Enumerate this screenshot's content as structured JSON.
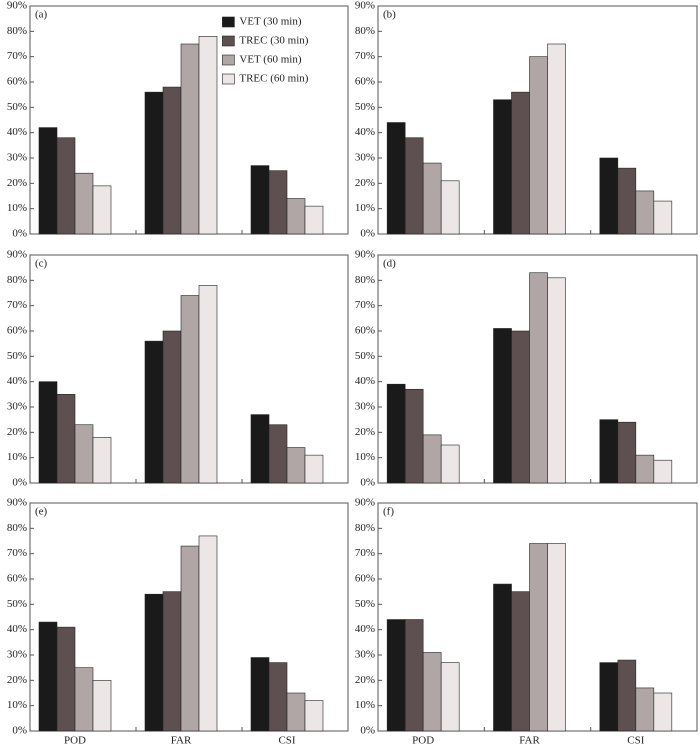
{
  "chart_data": [
    {
      "type": "bar",
      "title": "(a)",
      "categories": [
        null,
        null,
        null
      ],
      "legend": "upper right",
      "series": [
        {
          "name": "VET (30 min)",
          "color": "#1a1a1a",
          "values": [
            42,
            56,
            27
          ]
        },
        {
          "name": "TREC (30 min)",
          "color": "#5e5050",
          "values": [
            38,
            58,
            25
          ]
        },
        {
          "name": "VET (60 min)",
          "color": "#b0a6a6",
          "values": [
            24,
            75,
            14
          ]
        },
        {
          "name": "TREC (60 min)",
          "color": "#ece6e6",
          "values": [
            19,
            78,
            11
          ]
        }
      ],
      "ylim": [
        0,
        90
      ],
      "yticks": [
        {
          "value": 0,
          "label": "0%"
        },
        {
          "value": 10,
          "label": "10%"
        },
        {
          "value": 20,
          "label": "20%"
        },
        {
          "value": 30,
          "label": "30%"
        },
        {
          "value": 40,
          "label": "40%"
        },
        {
          "value": 50,
          "label": "50%"
        },
        {
          "value": 60,
          "label": "60%"
        },
        {
          "value": 70,
          "label": "70%"
        },
        {
          "value": 80,
          "label": "80%"
        },
        {
          "value": 90,
          "label": "90%"
        }
      ]
    },
    {
      "type": "bar",
      "title": "(b)",
      "categories": [
        null,
        null,
        null
      ],
      "series": [
        {
          "color": "#1a1a1a",
          "values": [
            44,
            53,
            30
          ]
        },
        {
          "color": "#5e5050",
          "values": [
            38,
            56,
            26
          ]
        },
        {
          "color": "#b0a6a6",
          "values": [
            28,
            70,
            17
          ]
        },
        {
          "color": "#ece6e6",
          "values": [
            21,
            75,
            13
          ]
        }
      ],
      "ylim": [
        0,
        90
      ],
      "yticks": [
        {
          "value": 0,
          "label": "0%"
        },
        {
          "value": 10,
          "label": "10%"
        },
        {
          "value": 20,
          "label": "20%"
        },
        {
          "value": 30,
          "label": "30%"
        },
        {
          "value": 40,
          "label": "40%"
        },
        {
          "value": 50,
          "label": "50%"
        },
        {
          "value": 60,
          "label": "60%"
        },
        {
          "value": 70,
          "label": "70%"
        },
        {
          "value": 80,
          "label": "80%"
        },
        {
          "value": 90,
          "label": "90%"
        }
      ]
    },
    {
      "type": "bar",
      "title": "(c)",
      "categories": [
        null,
        null,
        null
      ],
      "series": [
        {
          "color": "#1a1a1a",
          "values": [
            40,
            56,
            27
          ]
        },
        {
          "color": "#5e5050",
          "values": [
            35,
            60,
            23
          ]
        },
        {
          "color": "#b0a6a6",
          "values": [
            23,
            74,
            14
          ]
        },
        {
          "color": "#ece6e6",
          "values": [
            18,
            78,
            11
          ]
        }
      ],
      "ylim": [
        0,
        90
      ],
      "yticks": [
        {
          "value": 0,
          "label": "0%"
        },
        {
          "value": 10,
          "label": "10%"
        },
        {
          "value": 20,
          "label": "20%"
        },
        {
          "value": 30,
          "label": "30%"
        },
        {
          "value": 40,
          "label": "40%"
        },
        {
          "value": 50,
          "label": "50%"
        },
        {
          "value": 60,
          "label": "60%"
        },
        {
          "value": 70,
          "label": "70%"
        },
        {
          "value": 80,
          "label": "80%"
        },
        {
          "value": 90,
          "label": "90%"
        }
      ]
    },
    {
      "type": "bar",
      "title": "(d)",
      "categories": [
        null,
        null,
        null
      ],
      "series": [
        {
          "color": "#1a1a1a",
          "values": [
            39,
            61,
            25
          ]
        },
        {
          "color": "#5e5050",
          "values": [
            37,
            60,
            24
          ]
        },
        {
          "color": "#b0a6a6",
          "values": [
            19,
            83,
            11
          ]
        },
        {
          "color": "#ece6e6",
          "values": [
            15,
            81,
            9
          ]
        }
      ],
      "ylim": [
        0,
        90
      ],
      "yticks": [
        {
          "value": 0,
          "label": "0%"
        },
        {
          "value": 10,
          "label": "10%"
        },
        {
          "value": 20,
          "label": "20%"
        },
        {
          "value": 30,
          "label": "30%"
        },
        {
          "value": 40,
          "label": "40%"
        },
        {
          "value": 50,
          "label": "50%"
        },
        {
          "value": 60,
          "label": "60%"
        },
        {
          "value": 70,
          "label": "70%"
        },
        {
          "value": 80,
          "label": "80%"
        },
        {
          "value": 90,
          "label": "90%"
        }
      ]
    },
    {
      "type": "bar",
      "title": "(e)",
      "categories": [
        "POD",
        "FAR",
        "CSI"
      ],
      "series": [
        {
          "color": "#1a1a1a",
          "values": [
            43,
            54,
            29
          ]
        },
        {
          "color": "#5e5050",
          "values": [
            41,
            55,
            27
          ]
        },
        {
          "color": "#b0a6a6",
          "values": [
            25,
            73,
            15
          ]
        },
        {
          "color": "#ece6e6",
          "values": [
            20,
            77,
            12
          ]
        }
      ],
      "ylim": [
        0,
        90
      ],
      "yticks": [
        {
          "value": 0,
          "label": "0%"
        },
        {
          "value": 10,
          "label": "10%"
        },
        {
          "value": 20,
          "label": "20%"
        },
        {
          "value": 30,
          "label": "30%"
        },
        {
          "value": 40,
          "label": "40%"
        },
        {
          "value": 50,
          "label": "50%"
        },
        {
          "value": 60,
          "label": "60%"
        },
        {
          "value": 70,
          "label": "70%"
        },
        {
          "value": 80,
          "label": "80%"
        },
        {
          "value": 90,
          "label": "90%"
        }
      ]
    },
    {
      "type": "bar",
      "title": "(f)",
      "categories": [
        "POD",
        "FAR",
        "CSI"
      ],
      "series": [
        {
          "color": "#1a1a1a",
          "values": [
            44,
            58,
            27
          ]
        },
        {
          "color": "#5e5050",
          "values": [
            44,
            55,
            28
          ]
        },
        {
          "color": "#b0a6a6",
          "values": [
            31,
            74,
            17
          ]
        },
        {
          "color": "#ece6e6",
          "values": [
            27,
            74,
            15
          ]
        }
      ],
      "ylim": [
        0,
        90
      ],
      "yticks": [
        {
          "value": 0,
          "label": "0%"
        },
        {
          "value": 10,
          "label": "10%"
        },
        {
          "value": 20,
          "label": "20%"
        },
        {
          "value": 30,
          "label": "30%"
        },
        {
          "value": 40,
          "label": "40%"
        },
        {
          "value": 50,
          "label": "50%"
        },
        {
          "value": 60,
          "label": "60%"
        },
        {
          "value": 70,
          "label": "70%"
        },
        {
          "value": 80,
          "label": "80%"
        },
        {
          "value": 90,
          "label": "90%"
        }
      ]
    }
  ]
}
